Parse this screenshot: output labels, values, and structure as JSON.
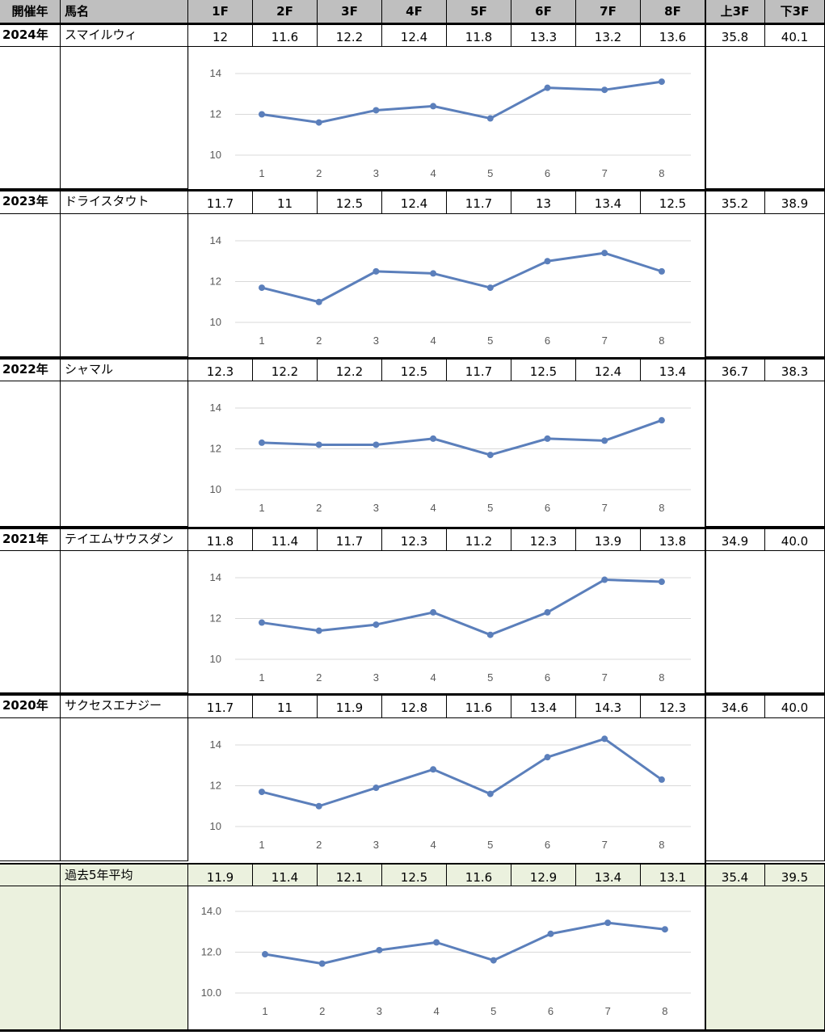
{
  "header": {
    "year": "開催年",
    "name": "馬名",
    "cols": [
      "1F",
      "2F",
      "3F",
      "4F",
      "5F",
      "6F",
      "7F",
      "8F"
    ],
    "first3": "上3F",
    "last3": "下3F"
  },
  "rows": [
    {
      "year": "2024年",
      "name": "スマイルウィ",
      "laps": [
        "12",
        "11.6",
        "12.2",
        "12.4",
        "11.8",
        "13.3",
        "13.2",
        "13.6"
      ],
      "first3": "35.8",
      "last3": "40.1"
    },
    {
      "year": "2023年",
      "name": "ドライスタウト",
      "laps": [
        "11.7",
        "11",
        "12.5",
        "12.4",
        "11.7",
        "13",
        "13.4",
        "12.5"
      ],
      "first3": "35.2",
      "last3": "38.9"
    },
    {
      "year": "2022年",
      "name": "シャマル",
      "laps": [
        "12.3",
        "12.2",
        "12.2",
        "12.5",
        "11.7",
        "12.5",
        "12.4",
        "13.4"
      ],
      "first3": "36.7",
      "last3": "38.3"
    },
    {
      "year": "2021年",
      "name": "テイエムサウスダン",
      "laps": [
        "11.8",
        "11.4",
        "11.7",
        "12.3",
        "11.2",
        "12.3",
        "13.9",
        "13.8"
      ],
      "first3": "34.9",
      "last3": "40.0"
    },
    {
      "year": "2020年",
      "name": "サクセスエナジー",
      "laps": [
        "11.7",
        "11",
        "11.9",
        "12.8",
        "11.6",
        "13.4",
        "14.3",
        "12.3"
      ],
      "first3": "34.6",
      "last3": "40.0"
    },
    {
      "year": "",
      "name": "過去5年平均",
      "laps": [
        "11.9",
        "11.4",
        "12.1",
        "12.5",
        "11.6",
        "12.9",
        "13.4",
        "13.1"
      ],
      "first3": "35.4",
      "last3": "39.5"
    }
  ],
  "chart_data": [
    {
      "type": "line",
      "x": [
        1,
        2,
        3,
        4,
        5,
        6,
        7,
        8
      ],
      "y": [
        12,
        11.6,
        12.2,
        12.4,
        11.8,
        13.3,
        13.2,
        13.6
      ],
      "yticks": [
        "10",
        "12",
        "14"
      ],
      "ylim": [
        10,
        14
      ],
      "grid": true,
      "color": "#5b7fbb"
    },
    {
      "type": "line",
      "x": [
        1,
        2,
        3,
        4,
        5,
        6,
        7,
        8
      ],
      "y": [
        11.7,
        11,
        12.5,
        12.4,
        11.7,
        13,
        13.4,
        12.5
      ],
      "yticks": [
        "10",
        "12",
        "14"
      ],
      "ylim": [
        10,
        14
      ],
      "grid": true,
      "color": "#5b7fbb"
    },
    {
      "type": "line",
      "x": [
        1,
        2,
        3,
        4,
        5,
        6,
        7,
        8
      ],
      "y": [
        12.3,
        12.2,
        12.2,
        12.5,
        11.7,
        12.5,
        12.4,
        13.4
      ],
      "yticks": [
        "10",
        "12",
        "14"
      ],
      "ylim": [
        10,
        14
      ],
      "grid": true,
      "color": "#5b7fbb"
    },
    {
      "type": "line",
      "x": [
        1,
        2,
        3,
        4,
        5,
        6,
        7,
        8
      ],
      "y": [
        11.8,
        11.4,
        11.7,
        12.3,
        11.2,
        12.3,
        13.9,
        13.8
      ],
      "yticks": [
        "10",
        "12",
        "14"
      ],
      "ylim": [
        10,
        14
      ],
      "grid": true,
      "color": "#5b7fbb"
    },
    {
      "type": "line",
      "x": [
        1,
        2,
        3,
        4,
        5,
        6,
        7,
        8
      ],
      "y": [
        11.7,
        11,
        11.9,
        12.8,
        11.6,
        13.4,
        14.3,
        12.3
      ],
      "yticks": [
        "10",
        "12",
        "14"
      ],
      "ylim": [
        10,
        14
      ],
      "grid": true,
      "color": "#5b7fbb"
    },
    {
      "type": "line",
      "x": [
        1,
        2,
        3,
        4,
        5,
        6,
        7,
        8
      ],
      "y": [
        11.9,
        11.44,
        12.1,
        12.48,
        11.6,
        12.9,
        13.44,
        13.12
      ],
      "yticks": [
        "10.0",
        "12.0",
        "14.0"
      ],
      "ylim": [
        10,
        14
      ],
      "grid": true,
      "color": "#5b7fbb"
    }
  ]
}
